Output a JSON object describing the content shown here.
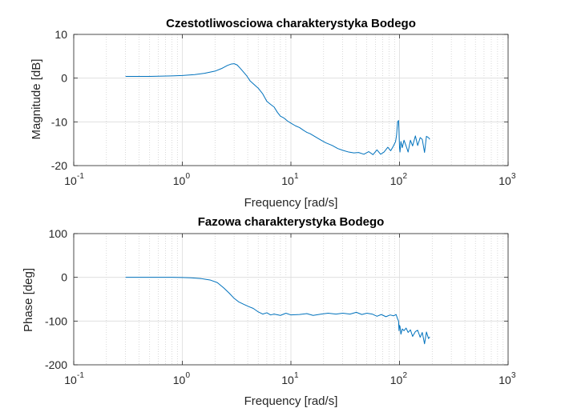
{
  "chart_data": [
    {
      "type": "line",
      "title": "Czestotliwosciowa charakterystyka Bodego",
      "xlabel": "Frequency [rad/s]",
      "ylabel": "Magnitude [dB]",
      "xscale": "log",
      "xlim": [
        0.1,
        1000
      ],
      "ylim": [
        -20,
        10
      ],
      "xticks": [
        0.1,
        1,
        10,
        100,
        1000
      ],
      "xtick_labels": [
        [
          "10",
          "-1"
        ],
        [
          "10",
          "0"
        ],
        [
          "10",
          "1"
        ],
        [
          "10",
          "2"
        ],
        [
          "10",
          "3"
        ]
      ],
      "yticks": [
        10,
        0,
        -10,
        -20
      ],
      "ytick_labels": [
        "10",
        "0",
        "-10",
        "-20"
      ],
      "grid": true,
      "color": "#0072BD",
      "series": [
        {
          "x": [
            0.3,
            0.5,
            0.8,
            1.0,
            1.3,
            1.6,
            2.0,
            2.3,
            2.6,
            2.8,
            3.0,
            3.2,
            3.4,
            3.6,
            3.9,
            4.2,
            4.6,
            5.0,
            5.5,
            6.0,
            6.5,
            7.0,
            7.5,
            8.0,
            8.6,
            9.3,
            10,
            11,
            12,
            13,
            14,
            15,
            17,
            19,
            21,
            24,
            27,
            30,
            34,
            38,
            42,
            47,
            52,
            57,
            62,
            67,
            72,
            78,
            83,
            88,
            92,
            94,
            96,
            98,
            99,
            100,
            101,
            103,
            106,
            110,
            115,
            120,
            126,
            132,
            140,
            147,
            155,
            162,
            170,
            177,
            185,
            190
          ],
          "y": [
            0.4,
            0.4,
            0.5,
            0.6,
            0.8,
            1.1,
            1.6,
            2.2,
            2.9,
            3.2,
            3.3,
            3.0,
            2.3,
            1.6,
            0.6,
            -0.6,
            -1.5,
            -2.3,
            -3.6,
            -5.3,
            -6.0,
            -6.6,
            -7.8,
            -8.7,
            -9.1,
            -9.8,
            -10.3,
            -10.9,
            -11.3,
            -11.9,
            -12.4,
            -12.7,
            -13.5,
            -14.2,
            -14.8,
            -15.4,
            -16.1,
            -16.5,
            -16.9,
            -17.1,
            -17.0,
            -17.4,
            -16.8,
            -17.5,
            -16.4,
            -17.4,
            -16.9,
            -15.8,
            -16.6,
            -15.5,
            -14.5,
            -13.0,
            -10.0,
            -9.7,
            -12.5,
            -15.8,
            -16.9,
            -14.5,
            -15.9,
            -14.2,
            -15.5,
            -16.9,
            -14.2,
            -15.5,
            -13.2,
            -15.4,
            -13.6,
            -14.0,
            -17.0,
            -13.3,
            -13.6,
            -14.0
          ]
        }
      ]
    },
    {
      "type": "line",
      "title": "Fazowa charakterystyka Bodego",
      "xlabel": "Frequency [rad/s]",
      "ylabel": "Phase [deg]",
      "xscale": "log",
      "xlim": [
        0.1,
        1000
      ],
      "ylim": [
        -200,
        100
      ],
      "xticks": [
        0.1,
        1,
        10,
        100,
        1000
      ],
      "xtick_labels": [
        [
          "10",
          "-1"
        ],
        [
          "10",
          "0"
        ],
        [
          "10",
          "1"
        ],
        [
          "10",
          "2"
        ],
        [
          "10",
          "3"
        ]
      ],
      "yticks": [
        100,
        0,
        -100,
        -200
      ],
      "ytick_labels": [
        "100",
        "0",
        "-100",
        "-200"
      ],
      "grid": true,
      "color": "#0072BD",
      "series": [
        {
          "x": [
            0.3,
            0.5,
            0.8,
            1.0,
            1.2,
            1.5,
            1.8,
            2.1,
            2.4,
            2.7,
            3.0,
            3.3,
            3.7,
            4.1,
            4.5,
            5.0,
            5.5,
            6.0,
            6.5,
            7.0,
            8.0,
            9.0,
            10,
            12,
            14,
            16,
            19,
            22,
            26,
            30,
            35,
            40,
            45,
            50,
            56,
            62,
            68,
            75,
            82,
            88,
            93,
            96,
            98,
            99,
            100,
            101,
            103,
            106,
            110,
            115,
            120,
            126,
            132,
            140,
            147,
            155,
            162,
            170,
            177,
            185,
            190
          ],
          "y": [
            0,
            0,
            0,
            -0.3,
            -1,
            -3,
            -6,
            -12,
            -24,
            -36,
            -48,
            -56,
            -62,
            -67,
            -71,
            -79,
            -84,
            -81,
            -86,
            -84,
            -87,
            -82,
            -86,
            -85,
            -83,
            -87,
            -84,
            -82,
            -84,
            -82,
            -84,
            -80,
            -85,
            -82,
            -84,
            -89,
            -85,
            -90,
            -86,
            -88,
            -85,
            -95,
            -100,
            -122,
            -110,
            -112,
            -130,
            -118,
            -122,
            -116,
            -126,
            -120,
            -135,
            -124,
            -121,
            -137,
            -126,
            -152,
            -125,
            -140,
            -136
          ]
        }
      ]
    }
  ]
}
